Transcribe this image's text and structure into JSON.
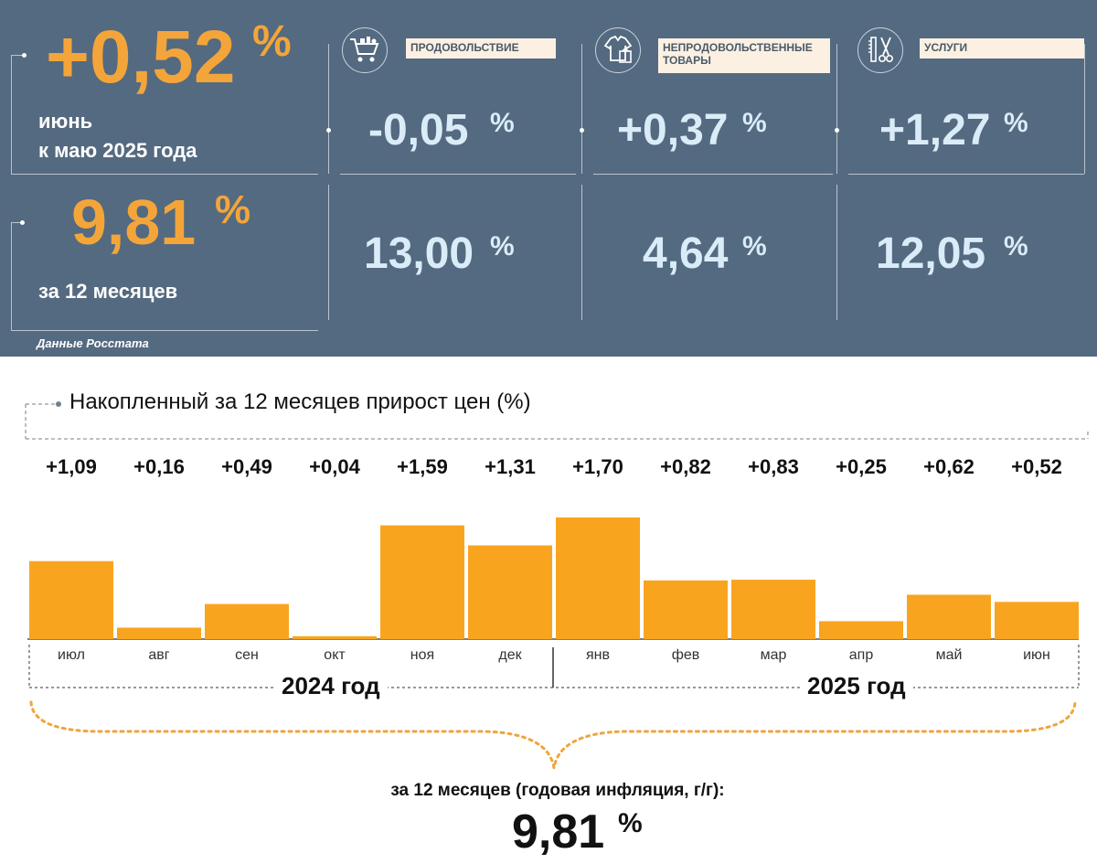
{
  "header": {
    "monthly_value": "+0,52",
    "monthly_percent_sign": "%",
    "monthly_caption_line1": "июнь",
    "monthly_caption_line2": "к маю 2025 года",
    "annual_value": "9,81",
    "annual_percent_sign": "%",
    "annual_caption": "за 12 месяцев",
    "source": "Данные Росстата"
  },
  "categories": [
    {
      "label": "ПРОДОВОЛЬСТВИЕ",
      "icon": "shopping-cart-icon",
      "monthly": "-0,05",
      "annual": "13,00",
      "percent_sign": "%"
    },
    {
      "label": "НЕПРОДОВОЛЬСТВЕННЫЕ ТОВАРЫ",
      "icon": "clothing-icon",
      "monthly": "+0,37",
      "annual": "4,64",
      "percent_sign": "%"
    },
    {
      "label": "УСЛУГИ",
      "icon": "scissors-comb-icon",
      "monthly": "+1,27",
      "annual": "12,05",
      "percent_sign": "%"
    }
  ],
  "colors": {
    "panel": "#546a80",
    "accent": "#f4a53a",
    "bar": "#f9a41f",
    "value_text": "#d9ecf8"
  },
  "chart_data": {
    "type": "bar",
    "title": "Накопленный за 12 месяцев прирост цен (%)",
    "categories": [
      "июл",
      "авг",
      "сен",
      "окт",
      "ноя",
      "дек",
      "янв",
      "фев",
      "мар",
      "апр",
      "май",
      "июн"
    ],
    "values": [
      1.09,
      0.16,
      0.49,
      0.04,
      1.59,
      1.31,
      1.7,
      0.82,
      0.83,
      0.25,
      0.62,
      0.52
    ],
    "value_labels": [
      "+1,09",
      "+0,16",
      "+0,49",
      "+0,04",
      "+1,59",
      "+1,31",
      "+1,70",
      "+0,82",
      "+0,83",
      "+0,25",
      "+0,62",
      "+0,52"
    ],
    "years": [
      {
        "label": "2024 год",
        "months": 6
      },
      {
        "label": "2025 год",
        "months": 6
      }
    ],
    "ylim": [
      0,
      1.7
    ],
    "grid": false,
    "xlabel": "",
    "ylabel": "",
    "total_caption": "за 12 месяцев (годовая инфляция, г/г):",
    "total_value": "9,81",
    "total_percent_sign": "%"
  }
}
